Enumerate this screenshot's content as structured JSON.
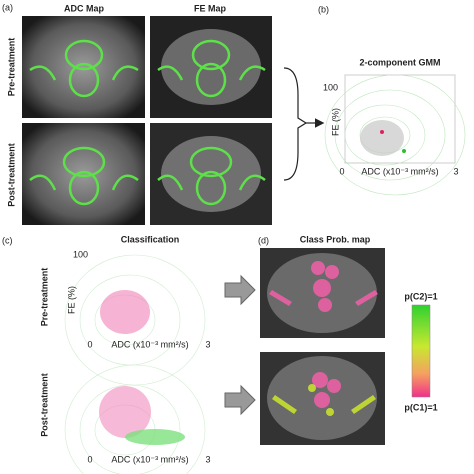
{
  "panel_a": {
    "label": "(a)",
    "columns": [
      "ADC Map",
      "FE Map"
    ],
    "rows": [
      "Pre-treatment",
      "Post-treatment"
    ]
  },
  "panel_b": {
    "label": "(b)",
    "title": "2-component GMM",
    "y_label": "FE (%)",
    "x_label": "ADC (x10⁻³ mm²/s)",
    "y_max": "100",
    "origin": "0",
    "x_max": "3"
  },
  "panel_c": {
    "label": "(c)",
    "title": "Classification",
    "rows": [
      "Pre-treatment",
      "Post-treatment"
    ],
    "y_label": "FE (%)",
    "x_label": "ADC (x10⁻³ mm²/s)",
    "y_max": "100",
    "origin": "0",
    "x_max": "3"
  },
  "panel_d": {
    "label": "(d)",
    "title": "Class Prob. map",
    "colorbar_top": "p(C2)=1",
    "colorbar_bottom": "p(C1)=1"
  }
}
